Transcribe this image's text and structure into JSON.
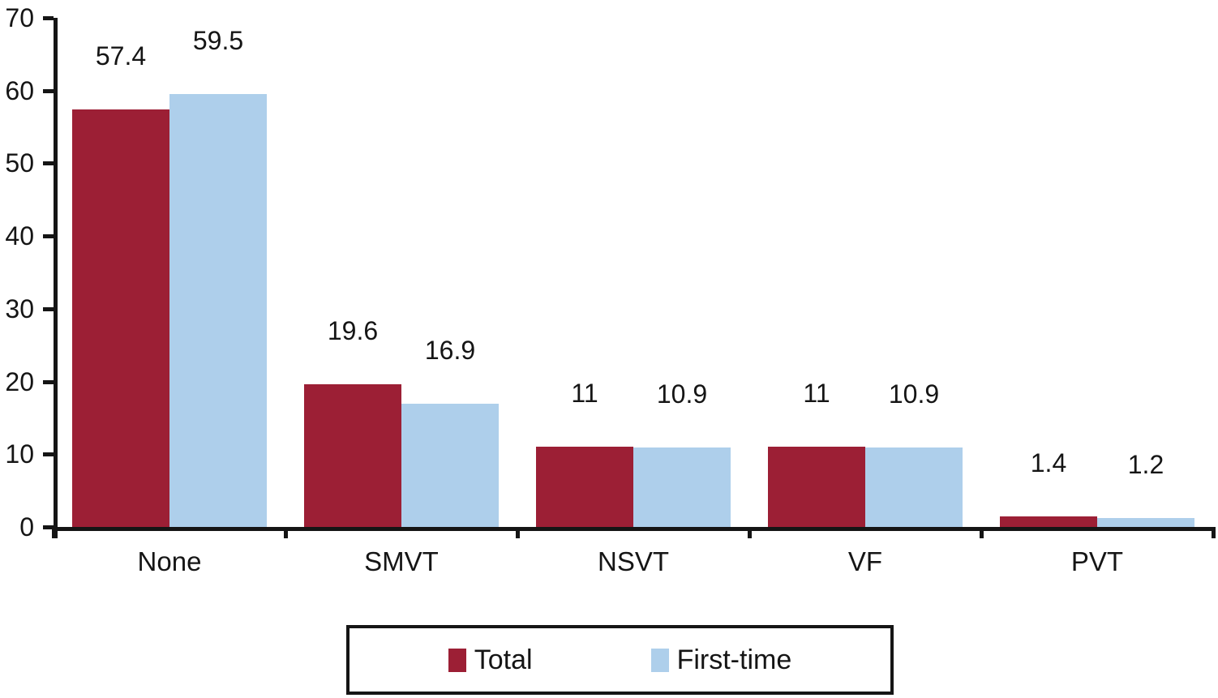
{
  "figure": {
    "background": "#FFFFFF",
    "axis_color": "#151515",
    "text_color": "#151515"
  },
  "chart_data": {
    "type": "bar",
    "title": "",
    "xlabel": "",
    "ylabel": "",
    "categories": [
      "None",
      "SMVT",
      "NSVT",
      "VF",
      "PVT"
    ],
    "series": [
      {
        "name": "Total",
        "color": "#9C1F35",
        "values": [
          57.4,
          19.6,
          11,
          11,
          1.4
        ],
        "value_labels": [
          "57.4",
          "19.6",
          "11",
          "11",
          "1.4"
        ]
      },
      {
        "name": "First-time",
        "color": "#AECFEB",
        "values": [
          59.5,
          16.9,
          10.9,
          10.9,
          1.2
        ],
        "value_labels": [
          "59.5",
          "16.9",
          "10.9",
          "10.9",
          "1.2"
        ]
      }
    ],
    "ylim": [
      0,
      70
    ],
    "yticks": [
      0,
      10,
      20,
      30,
      40,
      50,
      60,
      70
    ],
    "grid": false,
    "legend_position": "bottom",
    "value_labels_shown": true
  }
}
